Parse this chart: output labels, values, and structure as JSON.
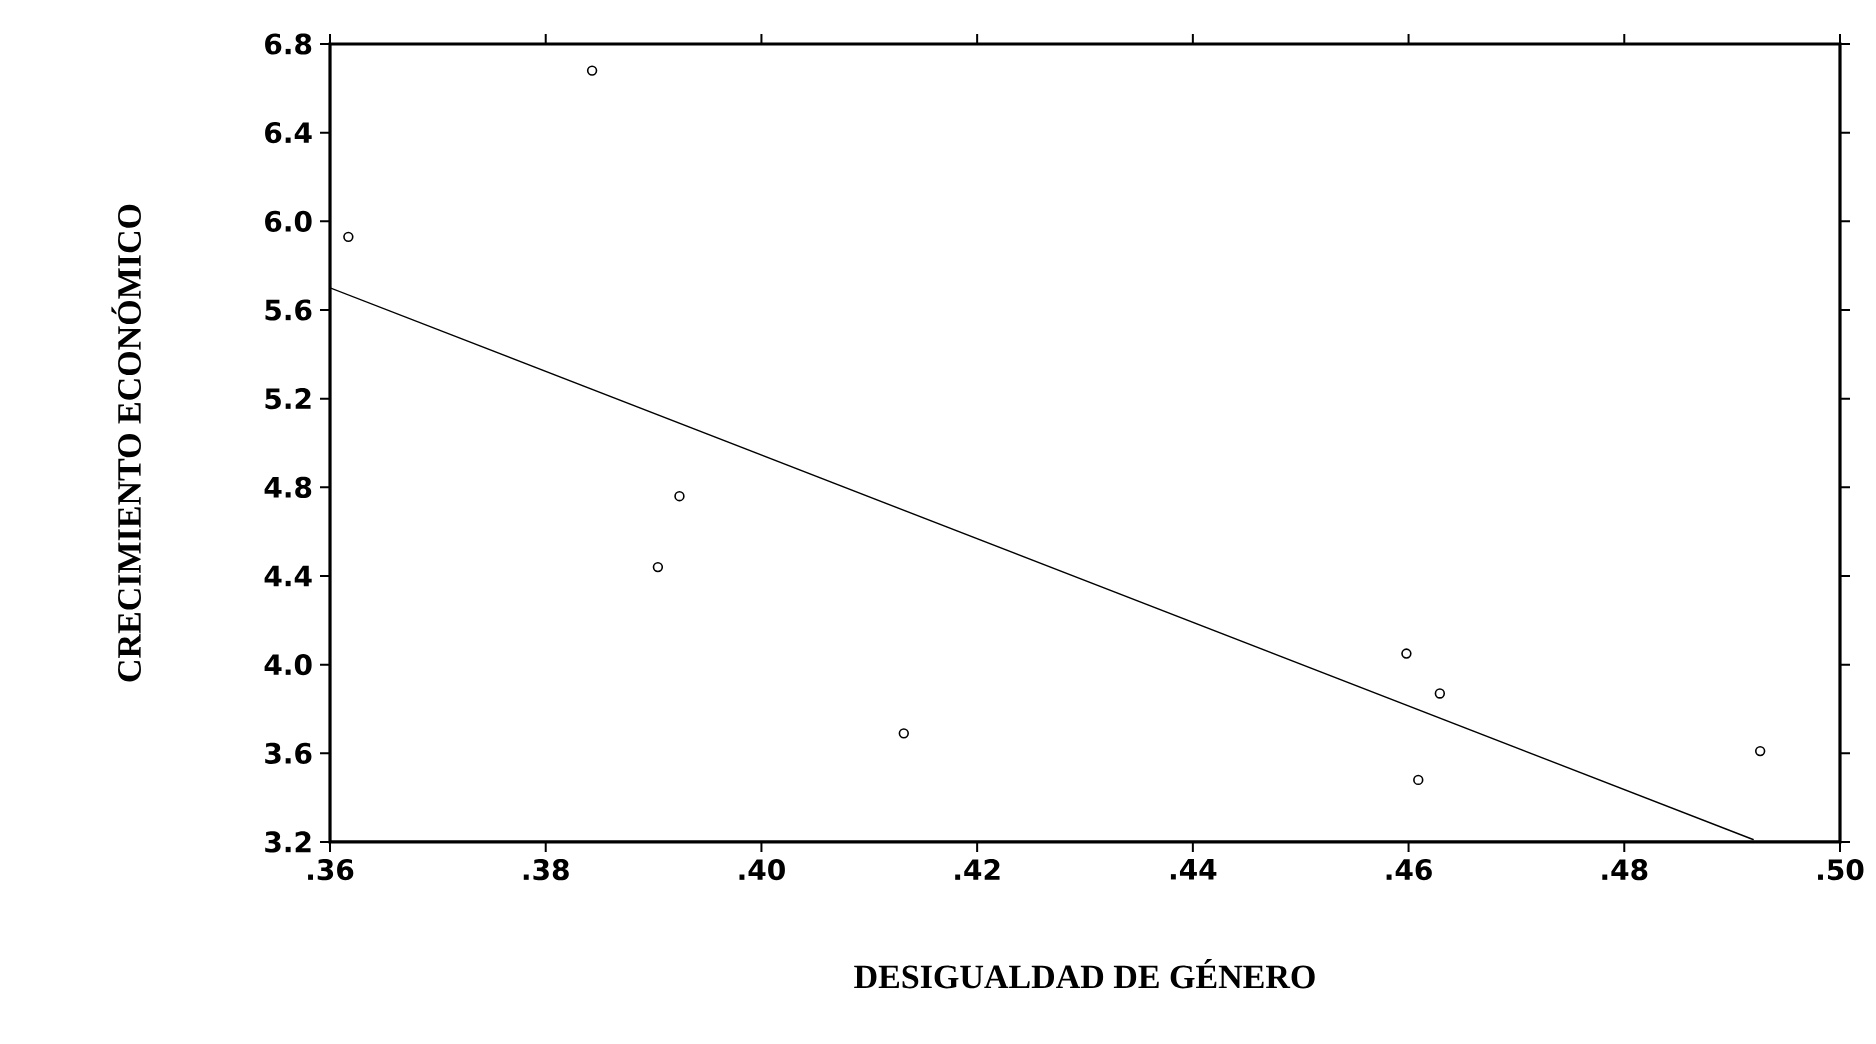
{
  "chart_data": {
    "type": "scatter",
    "xlabel": "DESIGUALDAD DE GÉNERO",
    "ylabel": "CRECIMIENTO ECONÓMICO",
    "xlim": [
      0.36,
      0.5
    ],
    "ylim": [
      3.2,
      6.8
    ],
    "xticks": [
      {
        "value": 0.36,
        "label": ".36"
      },
      {
        "value": 0.38,
        "label": ".38"
      },
      {
        "value": 0.4,
        "label": ".40"
      },
      {
        "value": 0.42,
        "label": ".42"
      },
      {
        "value": 0.44,
        "label": ".44"
      },
      {
        "value": 0.46,
        "label": ".46"
      },
      {
        "value": 0.48,
        "label": ".48"
      },
      {
        "value": 0.5,
        "label": ".50"
      }
    ],
    "yticks": [
      3.2,
      3.6,
      {
        "value": 4.0,
        "label": "4.0"
      },
      4.4,
      4.8,
      5.2,
      5.6,
      {
        "value": 6.0,
        "label": "6.0"
      },
      6.4,
      6.8
    ],
    "grid": false,
    "series": [
      {
        "marker": "circle",
        "color": "#000000",
        "x": [
          0.3617,
          0.3843,
          0.3924,
          0.3904,
          0.4132,
          0.4598,
          0.4629,
          0.4609,
          0.4926
        ],
        "values": [
          5.93,
          6.68,
          4.76,
          4.44,
          3.69,
          4.05,
          3.87,
          3.48,
          3.61
        ]
      },
      {
        "type": "line",
        "marker": "none",
        "line_style": "solid",
        "color": "#000000",
        "x": [
          0.36,
          0.492
        ],
        "values": [
          5.7,
          3.21
        ]
      }
    ]
  }
}
